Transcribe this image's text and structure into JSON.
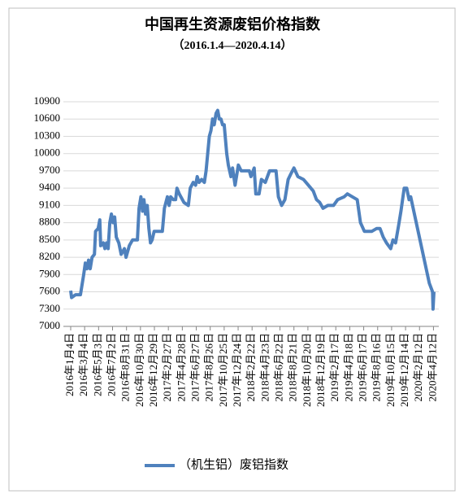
{
  "chart_data": {
    "type": "line",
    "title": "中国再生资源废铝价格指数",
    "subtitle": "（2016.1.4—2020.4.14）",
    "ylim": [
      7000,
      10900
    ],
    "yticks": [
      7000,
      7300,
      7600,
      7900,
      8200,
      8500,
      8800,
      9100,
      9400,
      9700,
      10000,
      10300,
      10600,
      10900
    ],
    "grid": true,
    "legend": "bottom",
    "xlim": [
      "2016-01-04",
      "2020-04-14"
    ],
    "xticks": [
      {
        "value": "2016-01-04",
        "label": "2016年1月4日"
      },
      {
        "value": "2016-03-04",
        "label": "2016年3月4日"
      },
      {
        "value": "2016-05-03",
        "label": "2016年5月3日"
      },
      {
        "value": "2016-07-02",
        "label": "2016年7月2日"
      },
      {
        "value": "2016-08-31",
        "label": "2016年8月31日"
      },
      {
        "value": "2016-10-30",
        "label": "2016年10月30日"
      },
      {
        "value": "2016-12-29",
        "label": "2016年12月29日"
      },
      {
        "value": "2017-02-27",
        "label": "2017年2月27日"
      },
      {
        "value": "2017-04-28",
        "label": "2017年4月28日"
      },
      {
        "value": "2017-06-27",
        "label": "2017年6月27日"
      },
      {
        "value": "2017-08-26",
        "label": "2017年8月26日"
      },
      {
        "value": "2017-10-25",
        "label": "2017年10月25日"
      },
      {
        "value": "2017-12-24",
        "label": "2017年12月24日"
      },
      {
        "value": "2018-02-22",
        "label": "2018年2月22日"
      },
      {
        "value": "2018-04-23",
        "label": "2018年4月23日"
      },
      {
        "value": "2018-06-22",
        "label": "2018年6月22日"
      },
      {
        "value": "2018-08-21",
        "label": "2018年8月21日"
      },
      {
        "value": "2018-10-20",
        "label": "2018年10月20日"
      },
      {
        "value": "2018-12-19",
        "label": "2018年12月19日"
      },
      {
        "value": "2019-02-17",
        "label": "2019年2月17日"
      },
      {
        "value": "2019-04-18",
        "label": "2019年4月18日"
      },
      {
        "value": "2019-06-17",
        "label": "2019年6月17日"
      },
      {
        "value": "2019-08-16",
        "label": "2019年8月16日"
      },
      {
        "value": "2019-10-15",
        "label": "2019年10月15日"
      },
      {
        "value": "2019-12-14",
        "label": "2019年12月14日"
      },
      {
        "value": "2020-02-12",
        "label": "2020年2月12日"
      },
      {
        "value": "2020-04-12",
        "label": "2020年4月12日"
      }
    ],
    "series": [
      {
        "name": "（机生铝）废铝指数",
        "color": "#4f81bd",
        "x": [
          "2016-01-04",
          "2016-01-08",
          "2016-01-25",
          "2016-02-15",
          "2016-02-29",
          "2016-03-07",
          "2016-03-14",
          "2016-03-21",
          "2016-03-28",
          "2016-04-05",
          "2016-04-15",
          "2016-04-20",
          "2016-05-01",
          "2016-05-08",
          "2016-05-12",
          "2016-05-23",
          "2016-05-30",
          "2016-06-06",
          "2016-06-13",
          "2016-06-20",
          "2016-06-27",
          "2016-07-04",
          "2016-07-11",
          "2016-07-18",
          "2016-07-29",
          "2016-08-08",
          "2016-08-22",
          "2016-08-29",
          "2016-09-12",
          "2016-09-26",
          "2016-10-17",
          "2016-10-24",
          "2016-11-01",
          "2016-11-08",
          "2016-11-14",
          "2016-11-21",
          "2016-11-28",
          "2016-12-05",
          "2016-12-12",
          "2016-12-19",
          "2016-12-28",
          "2017-02-01",
          "2017-02-10",
          "2017-02-23",
          "2017-03-02",
          "2017-03-09",
          "2017-03-20",
          "2017-03-30",
          "2017-04-05",
          "2017-04-15",
          "2017-05-05",
          "2017-05-24",
          "2017-06-01",
          "2017-06-14",
          "2017-06-24",
          "2017-07-01",
          "2017-07-09",
          "2017-07-20",
          "2017-08-01",
          "2017-08-08",
          "2017-08-15",
          "2017-08-22",
          "2017-08-29",
          "2017-09-05",
          "2017-09-12",
          "2017-09-20",
          "2017-09-27",
          "2017-10-04",
          "2017-10-11",
          "2017-10-18",
          "2017-10-25",
          "2017-11-05",
          "2017-11-12",
          "2017-11-23",
          "2017-11-30",
          "2017-12-11",
          "2017-12-25",
          "2018-01-06",
          "2018-02-10",
          "2018-02-17",
          "2018-03-03",
          "2018-03-10",
          "2018-03-24",
          "2018-04-03",
          "2018-04-20",
          "2018-05-08",
          "2018-06-05",
          "2018-06-15",
          "2018-06-29",
          "2018-07-13",
          "2018-07-27",
          "2018-08-08",
          "2018-08-21",
          "2018-09-07",
          "2018-10-01",
          "2018-10-22",
          "2018-11-12",
          "2018-11-26",
          "2018-12-10",
          "2018-12-24",
          "2019-01-14",
          "2019-02-07",
          "2019-02-25",
          "2019-03-25",
          "2019-04-08",
          "2019-04-29",
          "2019-05-20",
          "2019-06-03",
          "2019-06-20",
          "2019-07-22",
          "2019-08-12",
          "2019-08-26",
          "2019-09-09",
          "2019-09-23",
          "2019-10-11",
          "2019-10-21",
          "2019-11-01",
          "2019-11-14",
          "2019-11-24",
          "2019-12-08",
          "2019-12-19",
          "2019-12-29",
          "2020-01-05",
          "2020-03-25",
          "2020-04-08",
          "2020-04-10",
          "2020-04-14"
        ],
        "values": [
          7620,
          7500,
          7550,
          7550,
          7900,
          8100,
          8000,
          8150,
          8000,
          8200,
          8250,
          8650,
          8700,
          8850,
          8400,
          8450,
          8350,
          8450,
          8350,
          8800,
          8950,
          8800,
          8900,
          8550,
          8450,
          8250,
          8350,
          8200,
          8400,
          8500,
          8500,
          9050,
          9250,
          9000,
          9200,
          8950,
          9100,
          8700,
          8450,
          8500,
          8650,
          8650,
          9050,
          9250,
          9100,
          9250,
          9200,
          9200,
          9400,
          9300,
          9150,
          9100,
          9400,
          9500,
          9450,
          9600,
          9500,
          9550,
          9500,
          9700,
          10000,
          10300,
          10400,
          10600,
          10500,
          10700,
          10750,
          10600,
          10600,
          10500,
          10500,
          10000,
          9800,
          9600,
          9750,
          9450,
          9800,
          9700,
          9700,
          9600,
          9750,
          9300,
          9300,
          9550,
          9500,
          9700,
          9700,
          9250,
          9100,
          9200,
          9550,
          9650,
          9750,
          9600,
          9550,
          9450,
          9350,
          9200,
          9150,
          9050,
          9100,
          9100,
          9200,
          9250,
          9300,
          9250,
          9200,
          8800,
          8650,
          8650,
          8700,
          8700,
          8550,
          8450,
          8350,
          8500,
          8450,
          8750,
          9000,
          9400,
          9400,
          9200,
          9250,
          7750,
          7600,
          7300,
          7600
        ]
      }
    ]
  }
}
